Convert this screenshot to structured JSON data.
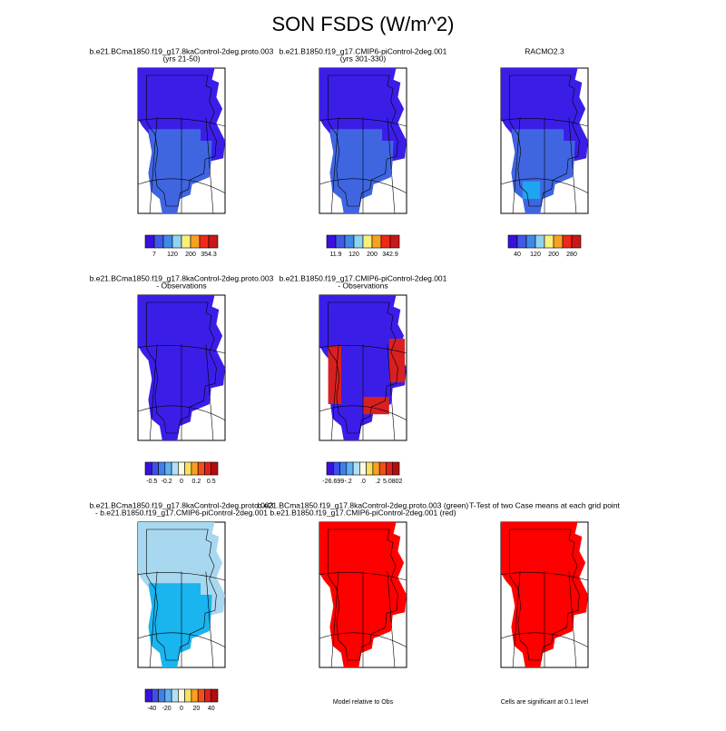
{
  "title": "SON FSDS (W/m^2)",
  "panels": [
    {
      "title": "b.e21.BCma1850.f19_g17.8kaControl-2deg.proto.003",
      "subtitle": "(yrs 21-50)",
      "colorbar_labels": [
        "7",
        "120",
        "200",
        "354.3"
      ]
    },
    {
      "title": "b.e21.B1850.f19_g17.CMIP6-piControl-2deg.001",
      "subtitle": "(yrs 301-330)",
      "colorbar_labels": [
        "11.9",
        "120",
        "200",
        "342.9"
      ]
    },
    {
      "title": "RACMO2.3",
      "colorbar_labels": [
        "40",
        "120",
        "200",
        "280"
      ]
    },
    {
      "title": "b.e21.BCma1850.f19_g17.8kaControl-2deg.proto.003",
      "subtitle": "- Observations",
      "colorbar_labels": [
        "-0.5",
        "-0.2",
        "0",
        "0.2",
        "0.5"
      ]
    },
    {
      "title": "b.e21.B1850.f19_g17.CMIP6-piControl-2deg.001",
      "subtitle": "- Observations",
      "colorbar_labels": [
        "-26.699",
        "-.2",
        ".0",
        ".2",
        "5.0802"
      ]
    },
    {
      "title": "b.e21.BCma1850.f19_g17.8kaControl-2deg.proto.003",
      "subtitle": "- b.e21.B1850.f19_g17.CMIP6-piControl-2deg.001",
      "colorbar_labels": [
        "-40",
        "-20",
        "0",
        "20",
        "40"
      ]
    },
    {
      "title": "b.e21.BCma1850.f19_g17.8kaControl-2deg.proto.003 (green)",
      "subtitle": "b.e21.B1850.f19_g17.CMIP6-piControl-2deg.001 (red)",
      "note": "Model relative to Obs"
    },
    {
      "title": "T-Test of two Case means at each grid point",
      "note": "Cells are significant at 0.1 level"
    }
  ]
}
